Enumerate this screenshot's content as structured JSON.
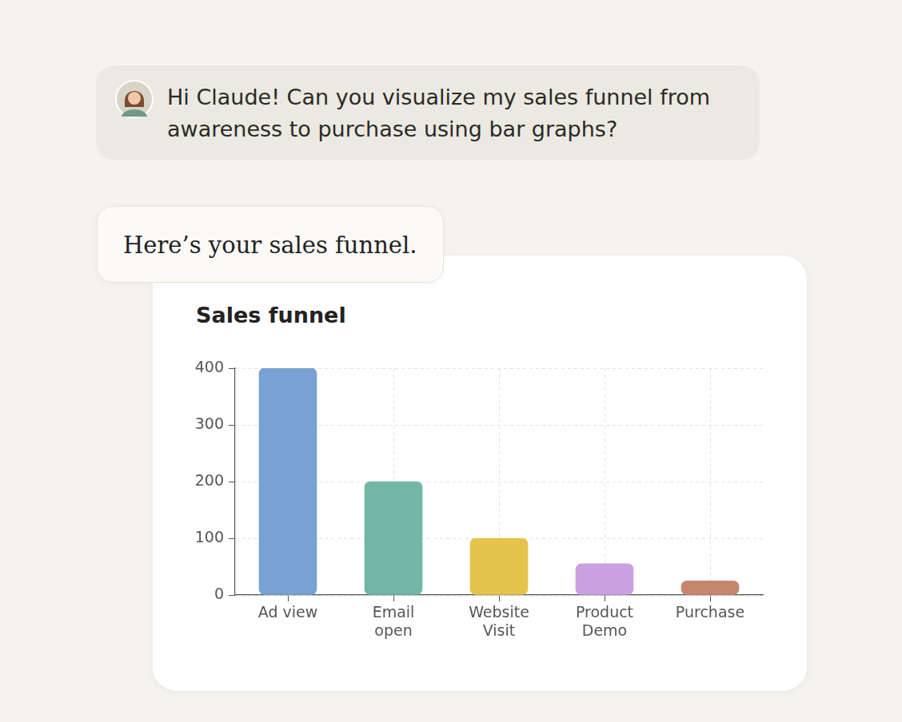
{
  "user_message": "Hi Claude! Can you visualize my sales funnel from awareness to purchase using bar graphs?",
  "assistant_message": "Here’s your sales funnel.",
  "chart_data": {
    "type": "bar",
    "title": "Sales funnel",
    "categories": [
      "Ad view",
      "Email open",
      "Website Visit",
      "Product Demo",
      "Purchase"
    ],
    "values": [
      400,
      200,
      100,
      55,
      25
    ],
    "colors": [
      "#78a2d4",
      "#72b7a6",
      "#e5c34c",
      "#c9a0e0",
      "#c6866e"
    ],
    "ylim": [
      0,
      400
    ],
    "yticks": [
      0,
      100,
      200,
      300,
      400
    ],
    "grid": true
  }
}
